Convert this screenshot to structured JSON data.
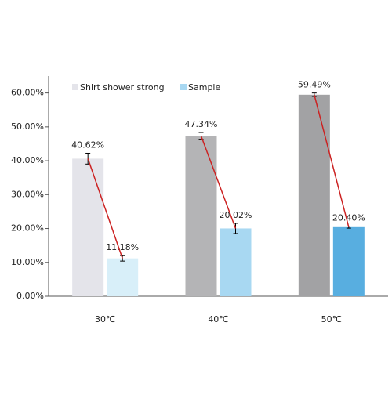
{
  "chart_data": {
    "type": "bar",
    "categories": [
      "30℃",
      "40℃",
      "50℃"
    ],
    "series": [
      {
        "name": "Shirt shower strong",
        "color": "#e4e4ea",
        "colors": [
          "#e4e4ea",
          "#b4b4b6",
          "#a2a2a4"
        ],
        "values": [
          40.62,
          47.34,
          59.49
        ],
        "errors": [
          1.6,
          1.0,
          0.5
        ],
        "value_labels": [
          "40.62%",
          "47.34%",
          "59.49%"
        ]
      },
      {
        "name": "Sample",
        "color": "#a8d8f2",
        "colors": [
          "#d8eff9",
          "#a8d8f2",
          "#58aee0"
        ],
        "values": [
          11.18,
          20.02,
          20.4
        ],
        "errors": [
          0.8,
          1.5,
          0.3
        ],
        "value_labels": [
          "11.18%",
          "20.02%",
          "20.40%"
        ]
      }
    ],
    "connector_color": "#cc2222",
    "ylim": [
      0,
      65
    ],
    "yticks": [
      {
        "value": 0,
        "label": "0.00%"
      },
      {
        "value": 10,
        "label": "10.00%"
      },
      {
        "value": 20,
        "label": "20.00%"
      },
      {
        "value": 30,
        "label": "30.00%"
      },
      {
        "value": 40,
        "label": "40.00%"
      },
      {
        "value": 50,
        "label": "50.00%"
      },
      {
        "value": 60,
        "label": "60.00%"
      }
    ],
    "grid": false,
    "legend": "top-left"
  }
}
